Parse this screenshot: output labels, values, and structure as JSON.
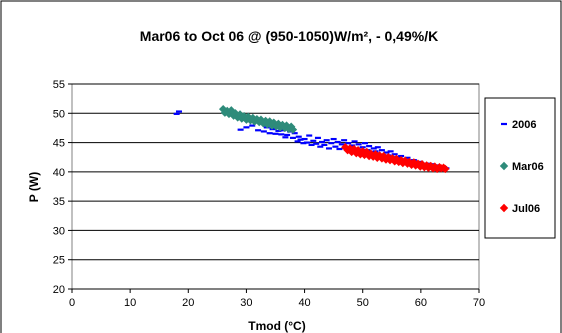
{
  "chart_data": {
    "type": "scatter",
    "title": "Mar06 to Oct 06 @ (950-1050)W/m², - 0,49%/K",
    "xlabel": "Tmod (°C)",
    "ylabel": "P (W)",
    "xlim": [
      0,
      70
    ],
    "ylim": [
      20,
      55
    ],
    "xticks": [
      0,
      10,
      20,
      30,
      40,
      50,
      60,
      70
    ],
    "yticks": [
      20,
      25,
      30,
      35,
      40,
      45,
      50,
      55
    ],
    "grid": "horizontal",
    "legend_position": "right",
    "series": [
      {
        "name": "2006",
        "marker": "dash",
        "color": "#0000ff",
        "points": [
          [
            18,
            49.9
          ],
          [
            18.4,
            50.3
          ],
          [
            29,
            47.2
          ],
          [
            30,
            47.6
          ],
          [
            31,
            47.9
          ],
          [
            32,
            47.1
          ],
          [
            33,
            46.9
          ],
          [
            33.5,
            47.6
          ],
          [
            34,
            46.6
          ],
          [
            34.5,
            47.3
          ],
          [
            35,
            46.5
          ],
          [
            35.5,
            47.0
          ],
          [
            36,
            46.4
          ],
          [
            36.3,
            47.1
          ],
          [
            36.7,
            45.9
          ],
          [
            37,
            46.3
          ],
          [
            37.5,
            46.9
          ],
          [
            38,
            45.8
          ],
          [
            38.3,
            46.6
          ],
          [
            38.8,
            45.2
          ],
          [
            39,
            46.0
          ],
          [
            39.3,
            45.5
          ],
          [
            39.8,
            44.9
          ],
          [
            40,
            45.6
          ],
          [
            40.4,
            45.0
          ],
          [
            40.8,
            46.2
          ],
          [
            41.2,
            44.6
          ],
          [
            41.5,
            45.3
          ],
          [
            42,
            44.8
          ],
          [
            42.3,
            45.8
          ],
          [
            42.7,
            44.3
          ],
          [
            43,
            45.1
          ],
          [
            43.4,
            44.6
          ],
          [
            43.8,
            45.4
          ],
          [
            44.2,
            44.0
          ],
          [
            44.6,
            44.9
          ],
          [
            45,
            45.6
          ],
          [
            45.3,
            44.3
          ],
          [
            45.7,
            45.1
          ],
          [
            46,
            43.9
          ],
          [
            46.4,
            44.7
          ],
          [
            46.8,
            45.4
          ],
          [
            47.1,
            44.2
          ],
          [
            47.5,
            44.9
          ],
          [
            47.9,
            43.6
          ],
          [
            48.2,
            44.5
          ],
          [
            48.6,
            45.2
          ],
          [
            49,
            43.9
          ],
          [
            49.3,
            44.7
          ],
          [
            49.7,
            43.4
          ],
          [
            50,
            44.2
          ],
          [
            50.4,
            44.9
          ],
          [
            50.8,
            43.7
          ],
          [
            51.1,
            44.4
          ],
          [
            51.5,
            43.2
          ],
          [
            51.9,
            44.0
          ],
          [
            52.2,
            43.5
          ],
          [
            52.6,
            44.2
          ],
          [
            53,
            42.9
          ],
          [
            53.3,
            43.7
          ],
          [
            53.7,
            42.6
          ],
          [
            54.1,
            43.3
          ],
          [
            54.4,
            42.8
          ],
          [
            54.8,
            43.5
          ],
          [
            55.2,
            42.3
          ],
          [
            55.5,
            43.0
          ],
          [
            55.9,
            42.5
          ],
          [
            56.3,
            41.9
          ],
          [
            56.6,
            42.7
          ],
          [
            57,
            42.1
          ],
          [
            57.4,
            41.6
          ],
          [
            57.7,
            42.4
          ],
          [
            58.1,
            41.8
          ],
          [
            58.5,
            41.3
          ],
          [
            58.8,
            42.0
          ],
          [
            59.2,
            41.5
          ],
          [
            59.6,
            41.0
          ],
          [
            59.9,
            41.7
          ],
          [
            60.3,
            41.2
          ],
          [
            60.7,
            40.8
          ],
          [
            61,
            41.4
          ],
          [
            61.4,
            40.9
          ],
          [
            61.8,
            41.3
          ],
          [
            62.1,
            40.6
          ],
          [
            62.5,
            41.1
          ],
          [
            62.9,
            40.7
          ],
          [
            63.2,
            40.9
          ],
          [
            63.6,
            40.5
          ],
          [
            64,
            40.8
          ],
          [
            64.4,
            40.6
          ]
        ]
      },
      {
        "name": "Mar06",
        "marker": "diamond",
        "color": "#2e8b7a",
        "points": [
          [
            26,
            50.7
          ],
          [
            26.3,
            50.1
          ],
          [
            26.7,
            50.4
          ],
          [
            27,
            49.9
          ],
          [
            27.4,
            50.5
          ],
          [
            27.8,
            49.6
          ],
          [
            28.1,
            50.0
          ],
          [
            28.5,
            49.3
          ],
          [
            28.9,
            49.8
          ],
          [
            29.2,
            49.1
          ],
          [
            29.6,
            49.5
          ],
          [
            30,
            48.9
          ],
          [
            30.3,
            49.4
          ],
          [
            30.7,
            48.8
          ],
          [
            31.1,
            49.2
          ],
          [
            31.4,
            48.6
          ],
          [
            31.8,
            49.0
          ],
          [
            32.2,
            48.5
          ],
          [
            32.5,
            48.9
          ],
          [
            32.9,
            48.3
          ],
          [
            33.3,
            48.7
          ],
          [
            33.6,
            48.1
          ],
          [
            34,
            48.6
          ],
          [
            34.4,
            47.9
          ],
          [
            34.7,
            48.4
          ],
          [
            35.1,
            47.8
          ],
          [
            35.5,
            48.2
          ],
          [
            35.8,
            47.6
          ],
          [
            36.2,
            48.0
          ],
          [
            36.6,
            47.5
          ],
          [
            36.9,
            47.9
          ],
          [
            37.3,
            47.3
          ],
          [
            37.7,
            47.7
          ],
          [
            38,
            47.2
          ]
        ]
      },
      {
        "name": "Jul06",
        "marker": "diamond",
        "color": "#ff0000",
        "points": [
          [
            47,
            44.2
          ],
          [
            47.4,
            43.7
          ],
          [
            47.8,
            44.0
          ],
          [
            48.1,
            43.4
          ],
          [
            48.5,
            43.9
          ],
          [
            48.9,
            43.2
          ],
          [
            49.2,
            43.7
          ],
          [
            49.6,
            43.0
          ],
          [
            50,
            43.5
          ],
          [
            50.3,
            42.9
          ],
          [
            50.7,
            43.4
          ],
          [
            51.1,
            42.7
          ],
          [
            51.4,
            43.1
          ],
          [
            51.8,
            42.6
          ],
          [
            52.2,
            43.0
          ],
          [
            52.5,
            42.4
          ],
          [
            52.9,
            42.8
          ],
          [
            53.3,
            42.3
          ],
          [
            53.6,
            42.7
          ],
          [
            54,
            42.1
          ],
          [
            54.4,
            42.5
          ],
          [
            54.7,
            42.0
          ],
          [
            55.1,
            42.3
          ],
          [
            55.5,
            41.8
          ],
          [
            55.8,
            42.2
          ],
          [
            56.2,
            41.7
          ],
          [
            56.6,
            42.0
          ],
          [
            56.9,
            41.5
          ],
          [
            57.3,
            41.9
          ],
          [
            57.7,
            41.4
          ],
          [
            58,
            41.7
          ],
          [
            58.4,
            41.2
          ],
          [
            58.8,
            41.6
          ],
          [
            59.1,
            41.1
          ],
          [
            59.5,
            41.4
          ],
          [
            59.9,
            40.9
          ],
          [
            60.2,
            41.3
          ],
          [
            60.6,
            40.8
          ],
          [
            61,
            41.1
          ],
          [
            61.3,
            40.7
          ],
          [
            61.7,
            41.0
          ],
          [
            62.1,
            40.6
          ],
          [
            62.4,
            40.9
          ],
          [
            62.8,
            40.5
          ],
          [
            63.2,
            40.8
          ],
          [
            63.5,
            40.6
          ],
          [
            63.9,
            40.7
          ],
          [
            64.2,
            40.5
          ]
        ]
      }
    ]
  }
}
